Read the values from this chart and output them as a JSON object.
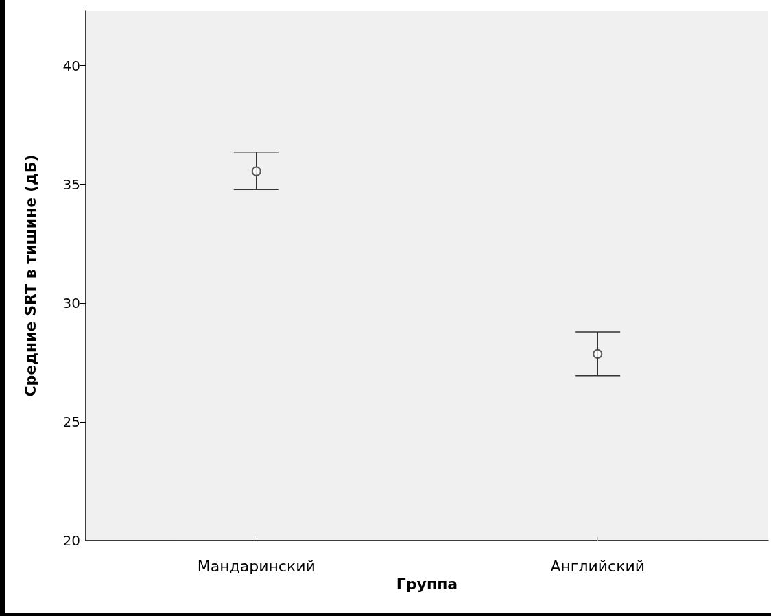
{
  "chart_data": {
    "type": "scatter",
    "xlabel": "Группа",
    "ylabel": "Средние SRT в тишине (дБ)",
    "categories": [
      "Мандаринский",
      "Английский"
    ],
    "values": [
      35.55,
      27.86
    ],
    "errors": [
      [
        34.78,
        36.36
      ],
      [
        26.94,
        28.78
      ]
    ],
    "color": "#333333",
    "marker": "circle",
    "ylim": [
      20,
      42.3
    ],
    "yticks": [
      20,
      25,
      30,
      35,
      40
    ],
    "grid": false
  }
}
